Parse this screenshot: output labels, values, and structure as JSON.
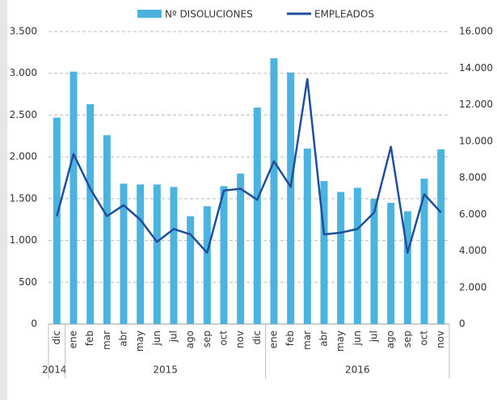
{
  "chart_data": {
    "type": "bar-line",
    "groups": [
      {
        "label": "2014",
        "categories": [
          "dic"
        ]
      },
      {
        "label": "2015",
        "categories": [
          "ene",
          "feb",
          "mar",
          "abr",
          "may",
          "jun",
          "jul",
          "ago",
          "sep",
          "oct",
          "nov",
          "dic"
        ]
      },
      {
        "label": "2016",
        "categories": [
          "ene",
          "feb",
          "mar",
          "abr",
          "may",
          "jun",
          "jul",
          "ago",
          "sep",
          "oct",
          "nov"
        ]
      }
    ],
    "series": [
      {
        "name": "Nº DISOLUCIONES",
        "type": "bar",
        "color": "#4ab3e0",
        "values": [
          2470,
          3020,
          2630,
          2260,
          1680,
          1670,
          1670,
          1640,
          1290,
          1410,
          1650,
          1800,
          2590,
          3180,
          3010,
          2100,
          1710,
          1580,
          1630,
          1500,
          1450,
          1350,
          1740,
          2090
        ]
      },
      {
        "name": "EMPLEADOS",
        "type": "line",
        "axis": "y2",
        "color": "#1f4e9c",
        "values": [
          5900,
          9300,
          7400,
          5900,
          6500,
          5700,
          4500,
          5200,
          4900,
          3900,
          7300,
          7400,
          6800,
          8900,
          7500,
          13400,
          4900,
          5000,
          5200,
          6100,
          9700,
          3900,
          7100,
          6100
        ]
      }
    ],
    "ylim": [
      0,
      3500
    ],
    "yticks": [
      0,
      500,
      {
        "value": 1000,
        "label": "1.000"
      },
      {
        "value": 1500,
        "label": "1.500"
      },
      {
        "value": 2000,
        "label": "2.000"
      },
      {
        "value": 2500,
        "label": "2.500"
      },
      {
        "value": 3000,
        "label": "3.000"
      },
      {
        "value": 3500,
        "label": "3.500"
      }
    ],
    "y2lim": [
      0,
      16000
    ],
    "y2ticks": [
      0,
      {
        "value": 2000,
        "label": "2.000"
      },
      {
        "value": 4000,
        "label": "4.000"
      },
      {
        "value": 6000,
        "label": "6.000"
      },
      {
        "value": 8000,
        "label": "8.000"
      },
      {
        "value": 10000,
        "label": "10.000"
      },
      {
        "value": 12000,
        "label": "12.000"
      },
      {
        "value": 14000,
        "label": "14.000"
      },
      {
        "value": 16000,
        "label": "16.000"
      }
    ],
    "grid": true,
    "legend": "top"
  }
}
